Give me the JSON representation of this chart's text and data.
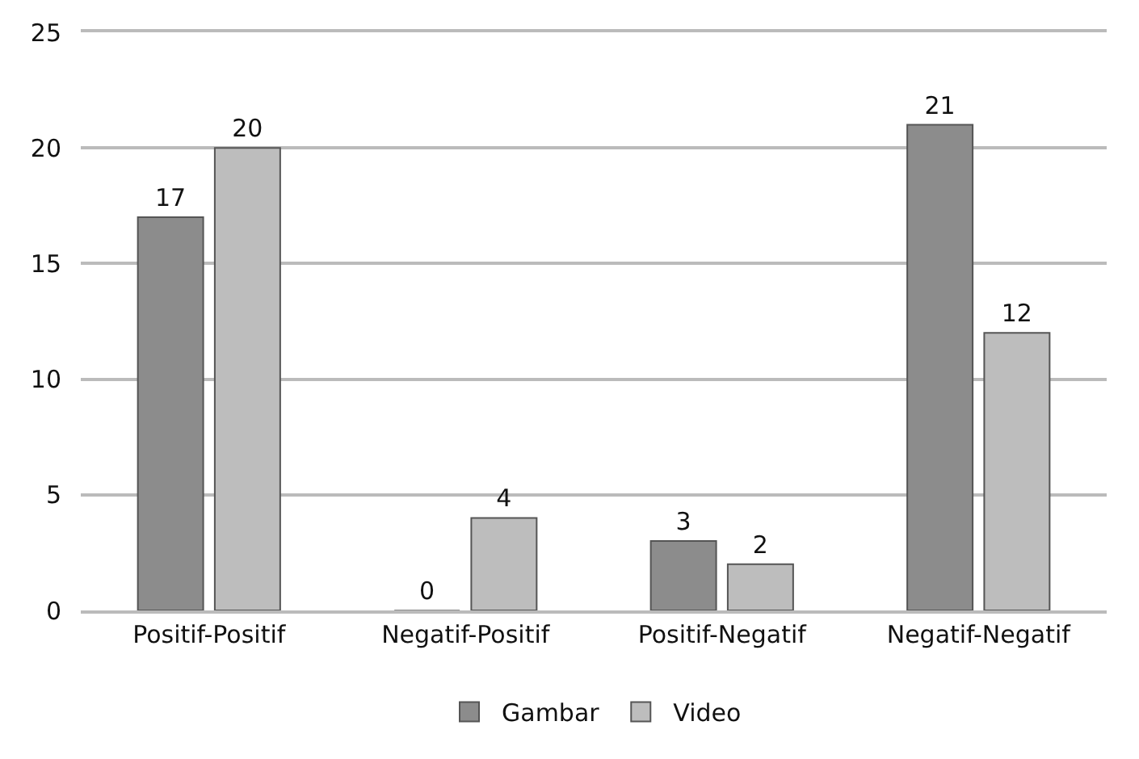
{
  "chart_data": {
    "type": "bar",
    "categories": [
      "Positif-Positif",
      "Negatif-Positif",
      "Positif-Negatif",
      "Negatif-Negatif"
    ],
    "series": [
      {
        "name": "Gambar",
        "color": "#8c8c8c",
        "values": [
          17,
          0,
          3,
          21
        ]
      },
      {
        "name": "Video",
        "color": "#bdbdbd",
        "values": [
          20,
          4,
          2,
          12
        ]
      }
    ],
    "ylim": [
      0,
      25
    ],
    "yticks": [
      0,
      5,
      10,
      15,
      20,
      25
    ],
    "grid": "y",
    "legend": "bottom",
    "data_labels": true
  }
}
